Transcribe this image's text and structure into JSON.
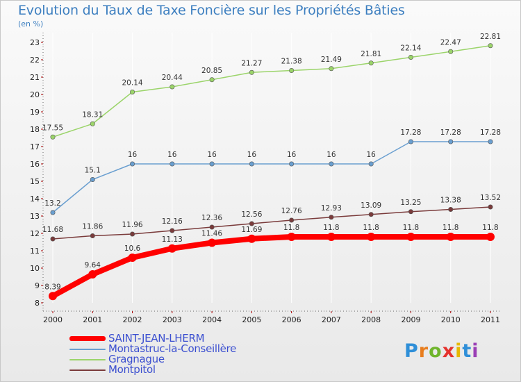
{
  "title": "Evolution du Taux de Taxe Foncière sur les Propriétés Bâties",
  "unit_label": "(en %)",
  "logo": {
    "letters": [
      "P",
      "r",
      "o",
      "x",
      "i",
      "t",
      "i"
    ],
    "colors": [
      "#2f8fd8",
      "#e87d1e",
      "#6fb52c",
      "#e5322d",
      "#e6b800",
      "#2f8fd8",
      "#9a3fb5"
    ]
  },
  "chart_data": {
    "type": "line",
    "x": [
      2000,
      2001,
      2002,
      2003,
      2004,
      2005,
      2006,
      2007,
      2008,
      2009,
      2010,
      2011
    ],
    "ylim": [
      8,
      23
    ],
    "yticks": [
      8,
      9,
      10,
      11,
      12,
      13,
      14,
      15,
      16,
      17,
      18,
      19,
      20,
      21,
      22,
      23
    ],
    "grid": "vertical",
    "legend_position": "bottom-left",
    "series": [
      {
        "name": "SAINT-JEAN-LHERM",
        "color": "#ff0000",
        "values": [
          8.39,
          9.64,
          10.6,
          11.13,
          11.46,
          11.69,
          11.8,
          11.8,
          11.8,
          11.8,
          11.8,
          11.8
        ],
        "labels": [
          "8.39",
          "9.64",
          "10.6",
          "11.13",
          "11.46",
          "11.69",
          "11.8",
          "11.8",
          "11.8",
          "11.8",
          "11.8",
          "11.8"
        ]
      },
      {
        "name": "Montastruc-la-Conseillère",
        "color": "#6a9fd0",
        "values": [
          13.2,
          15.1,
          16,
          16,
          16,
          16,
          16,
          16,
          16,
          17.28,
          17.28,
          17.28
        ],
        "labels": [
          "13.2",
          "15.1",
          "16",
          "16",
          "16",
          "16",
          "16",
          "16",
          "16",
          "17.28",
          "17.28",
          "17.28"
        ]
      },
      {
        "name": "Gragnague",
        "color": "#9bd46a",
        "values": [
          17.55,
          18.31,
          20.14,
          20.44,
          20.85,
          21.27,
          21.38,
          21.49,
          21.81,
          22.14,
          22.47,
          22.81
        ],
        "labels": [
          "17.55",
          "18.31",
          "20.14",
          "20.44",
          "20.85",
          "21.27",
          "21.38",
          "21.49",
          "21.81",
          "22.14",
          "22.47",
          "22.81"
        ]
      },
      {
        "name": "Montpitol",
        "color": "#7a3b3b",
        "values": [
          11.68,
          11.86,
          11.96,
          12.16,
          12.36,
          12.56,
          12.76,
          12.93,
          13.09,
          13.25,
          13.38,
          13.52
        ],
        "labels": [
          "11.68",
          "11.86",
          "11.96",
          "12.16",
          "12.36",
          "12.56",
          "12.76",
          "12.93",
          "13.09",
          "13.25",
          "13.38",
          "13.52"
        ]
      }
    ]
  }
}
